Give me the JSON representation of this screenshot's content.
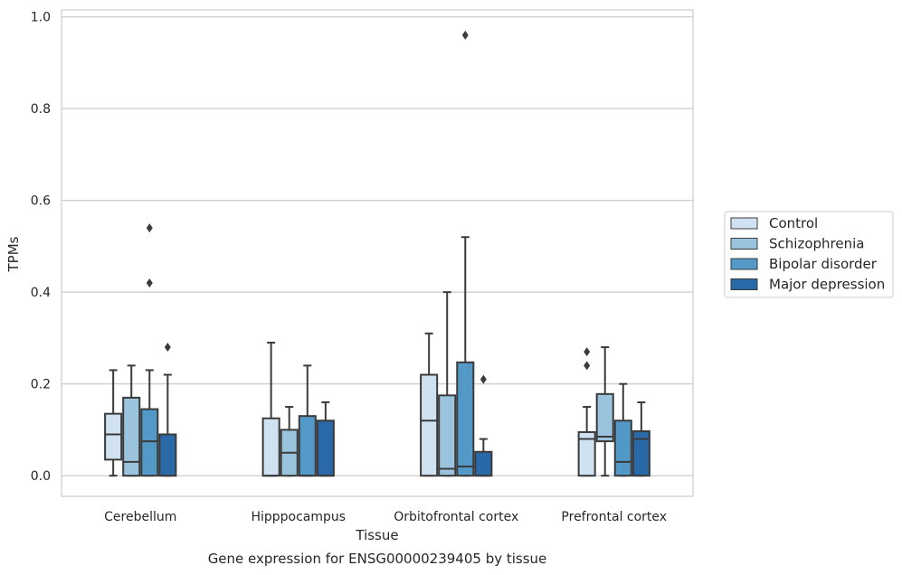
{
  "chart_data": {
    "type": "box",
    "caption": "Gene expression for ENSG00000239405 by tissue",
    "xlabel": "Tissue",
    "ylabel": "TPMs",
    "ylim": [
      -0.045,
      1.015
    ],
    "yticks": [
      "0.0",
      "0.2",
      "0.4",
      "0.6",
      "0.8",
      "1.0"
    ],
    "grid": "horizontal",
    "legend_position": "right",
    "categories": [
      "Cerebellum",
      "Hipppocampus",
      "Orbitofrontal cortex",
      "Prefrontal cortex"
    ],
    "series": [
      {
        "name": "Control",
        "color": "#d0e2f2",
        "boxes": [
          {
            "whislo": 0.0,
            "q1": 0.035,
            "med": 0.09,
            "q3": 0.135,
            "whishi": 0.23,
            "fliers": []
          },
          {
            "whislo": 0.0,
            "q1": 0.0,
            "med": 0.0,
            "q3": 0.125,
            "whishi": 0.29,
            "fliers": []
          },
          {
            "whislo": 0.0,
            "q1": 0.0,
            "med": 0.12,
            "q3": 0.22,
            "whishi": 0.31,
            "fliers": []
          },
          {
            "whislo": 0.0,
            "q1": 0.0,
            "med": 0.08,
            "q3": 0.095,
            "whishi": 0.15,
            "fliers": [
              0.24,
              0.27
            ]
          }
        ]
      },
      {
        "name": "Schizophrenia",
        "color": "#9ac4dd",
        "boxes": [
          {
            "whislo": 0.0,
            "q1": 0.0,
            "med": 0.03,
            "q3": 0.17,
            "whishi": 0.24,
            "fliers": []
          },
          {
            "whislo": 0.0,
            "q1": 0.0,
            "med": 0.05,
            "q3": 0.1,
            "whishi": 0.15,
            "fliers": []
          },
          {
            "whislo": 0.0,
            "q1": 0.0,
            "med": 0.015,
            "q3": 0.175,
            "whishi": 0.4,
            "fliers": []
          },
          {
            "whislo": 0.0,
            "q1": 0.075,
            "med": 0.085,
            "q3": 0.178,
            "whishi": 0.28,
            "fliers": []
          }
        ]
      },
      {
        "name": "Bipolar disorder",
        "color": "#5299c8",
        "boxes": [
          {
            "whislo": 0.0,
            "q1": 0.0,
            "med": 0.075,
            "q3": 0.145,
            "whishi": 0.23,
            "fliers": [
              0.42,
              0.54
            ]
          },
          {
            "whislo": 0.0,
            "q1": 0.0,
            "med": 0.0,
            "q3": 0.13,
            "whishi": 0.24,
            "fliers": []
          },
          {
            "whislo": 0.0,
            "q1": 0.0,
            "med": 0.02,
            "q3": 0.247,
            "whishi": 0.52,
            "fliers": [
              0.96
            ]
          },
          {
            "whislo": 0.0,
            "q1": 0.0,
            "med": 0.03,
            "q3": 0.12,
            "whishi": 0.2,
            "fliers": []
          }
        ]
      },
      {
        "name": "Major depression",
        "color": "#2a69a7",
        "boxes": [
          {
            "whislo": 0.0,
            "q1": 0.0,
            "med": 0.0,
            "q3": 0.09,
            "whishi": 0.22,
            "fliers": [
              0.28
            ]
          },
          {
            "whislo": 0.0,
            "q1": 0.0,
            "med": 0.0,
            "q3": 0.12,
            "whishi": 0.16,
            "fliers": []
          },
          {
            "whislo": 0.0,
            "q1": 0.0,
            "med": 0.0,
            "q3": 0.052,
            "whishi": 0.08,
            "fliers": [
              0.21
            ]
          },
          {
            "whislo": 0.0,
            "q1": 0.0,
            "med": 0.08,
            "q3": 0.097,
            "whishi": 0.16,
            "fliers": []
          }
        ]
      }
    ]
  }
}
